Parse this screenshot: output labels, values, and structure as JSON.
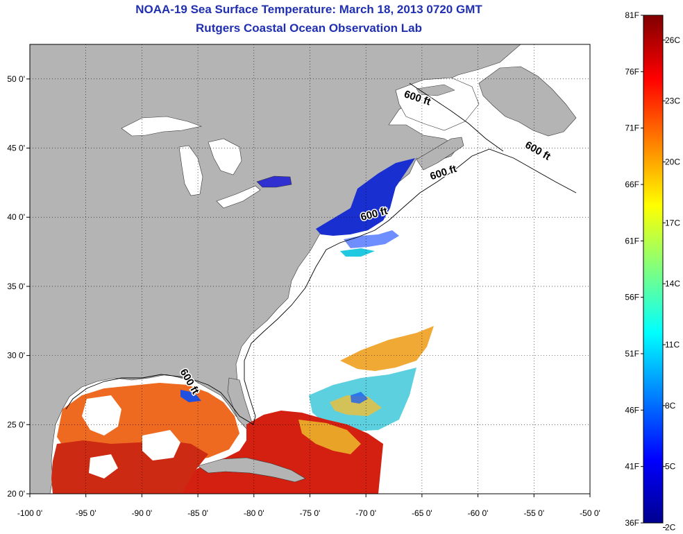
{
  "title": "NOAA-19 Sea Surface Temperature:  March 18, 2013 0720 GMT",
  "subtitle": "Rutgers Coastal Ocean Observation Lab",
  "map": {
    "lon_range": [
      -100,
      -50
    ],
    "lat_range": [
      20,
      52.5
    ],
    "lon_ticks": [
      -100,
      -95,
      -90,
      -85,
      -80,
      -75,
      -70,
      -65,
      -60,
      -55,
      -50
    ],
    "lat_ticks": [
      20,
      25,
      30,
      35,
      40,
      45,
      50
    ],
    "lon_tick_labels": [
      "-100 0'",
      "-95 0'",
      "-90 0'",
      "-85 0'",
      "-80 0'",
      "-75 0'",
      "-70 0'",
      "-65 0'",
      "-60 0'",
      "-55 0'",
      "-50 0'"
    ],
    "lat_tick_labels": [
      "20 0'",
      "25 0'",
      "30 0'",
      "35 0'",
      "40 0'",
      "45 0'",
      "50 0'"
    ],
    "grid": "dotted",
    "land_color": "#b4b4b4",
    "no_data_color": "#ffffff",
    "isobath_labels": [
      {
        "text": "600 ft",
        "lon": -65.5,
        "lat": 48.4
      },
      {
        "text": "600 ft",
        "lon": -54.8,
        "lat": 44.6
      },
      {
        "text": "600 ft",
        "lon": -63.0,
        "lat": 43.0
      },
      {
        "text": "600 ft",
        "lon": -69.2,
        "lat": 40.0
      },
      {
        "text": "600 ft",
        "lon": -86.0,
        "lat": 28.0
      }
    ]
  },
  "colorbar": {
    "range_f": [
      36,
      81
    ],
    "f_labels": [
      "81F",
      "76F",
      "71F",
      "66F",
      "61F",
      "56F",
      "51F",
      "46F",
      "41F",
      "36F"
    ],
    "c_labels": [
      "26C",
      "23C",
      "20C",
      "17C",
      "14C",
      "11C",
      "8C",
      "5C",
      "2C"
    ],
    "c_values": [
      26,
      23,
      20,
      17,
      14,
      11,
      8,
      5,
      2
    ],
    "colormap": "jet"
  }
}
